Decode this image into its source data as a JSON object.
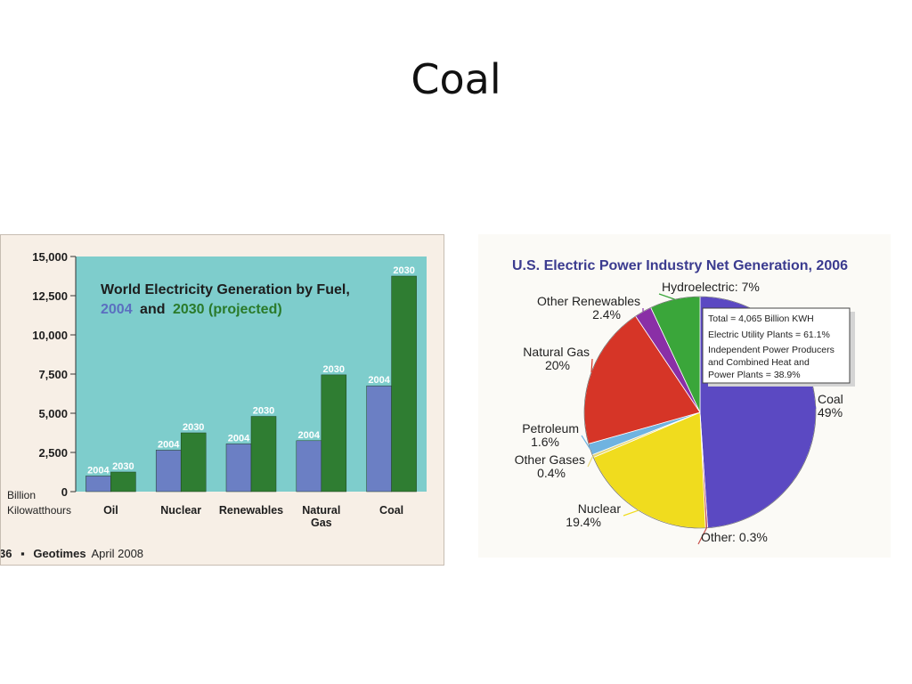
{
  "slide": {
    "title": "Coal"
  },
  "chart_data": [
    {
      "type": "bar",
      "title": "World Electricity Generation by Fuel,",
      "subtitle": {
        "year1": "2004",
        "and": "and",
        "year2": "2030 (projected)"
      },
      "ylabel": "Billion Kilowatthours",
      "ylabel_lines": [
        "Billion",
        "Kilowatthours"
      ],
      "ylim": [
        0,
        15000
      ],
      "yticks": [
        {
          "value": 0,
          "label": "0"
        },
        {
          "value": 2500,
          "label": "2,500"
        },
        {
          "value": 5000,
          "label": "5,000"
        },
        {
          "value": 7500,
          "label": "7,500"
        },
        {
          "value": 10000,
          "label": "10,000"
        },
        {
          "value": 12500,
          "label": "12,500"
        },
        {
          "value": 15000,
          "label": "15,000"
        }
      ],
      "categories": [
        "Oil",
        "Nuclear",
        "Renewables",
        "Natural Gas",
        "Coal"
      ],
      "category_lines": [
        [
          "Oil"
        ],
        [
          "Nuclear"
        ],
        [
          "Renewables"
        ],
        [
          "Natural",
          "Gas"
        ],
        [
          "Coal"
        ]
      ],
      "series": [
        {
          "name": "2004",
          "color": "#6b7fc4",
          "values": [
            1000,
            2650,
            3050,
            3250,
            6750
          ]
        },
        {
          "name": "2030",
          "color": "#2f7d32",
          "values": [
            1250,
            3750,
            4800,
            7450,
            13750
          ]
        }
      ],
      "plot_background": "#7ecdcc",
      "footer": {
        "page": "36",
        "bullet": "▪",
        "source": "Geotimes",
        "date": "April 2008"
      }
    },
    {
      "type": "pie",
      "title": "U.S. Electric Power Industry Net Generation, 2006",
      "slices": [
        {
          "label": "Coal",
          "value": 49,
          "display": "49%",
          "color": "#5b49c2"
        },
        {
          "label": "Other:",
          "value": 0.3,
          "display": "0.3%",
          "color": "#c8504a"
        },
        {
          "label": "Nuclear",
          "value": 19.4,
          "display": "19.4%",
          "color": "#f0dc1e"
        },
        {
          "label": "Other Gases",
          "value": 0.4,
          "display": "0.4%",
          "color": "#e7d87a"
        },
        {
          "label": "Petroleum",
          "value": 1.6,
          "display": "1.6%",
          "color": "#6fb3e0"
        },
        {
          "label": "Natural Gas",
          "value": 20,
          "display": "20%",
          "color": "#d63527"
        },
        {
          "label": "Other Renewables",
          "value": 2.4,
          "display": "2.4%",
          "color": "#8a2fa6"
        },
        {
          "label": "Hydroelectric:",
          "value": 7,
          "display": "7%",
          "color": "#3aa63a"
        }
      ],
      "info_box": [
        "Total = 4,065 Billion KWH",
        "Electric Utility Plants = 61.1%",
        "Independent Power Producers",
        "and Combined Heat and",
        "Power Plants = 38.9%"
      ]
    }
  ]
}
